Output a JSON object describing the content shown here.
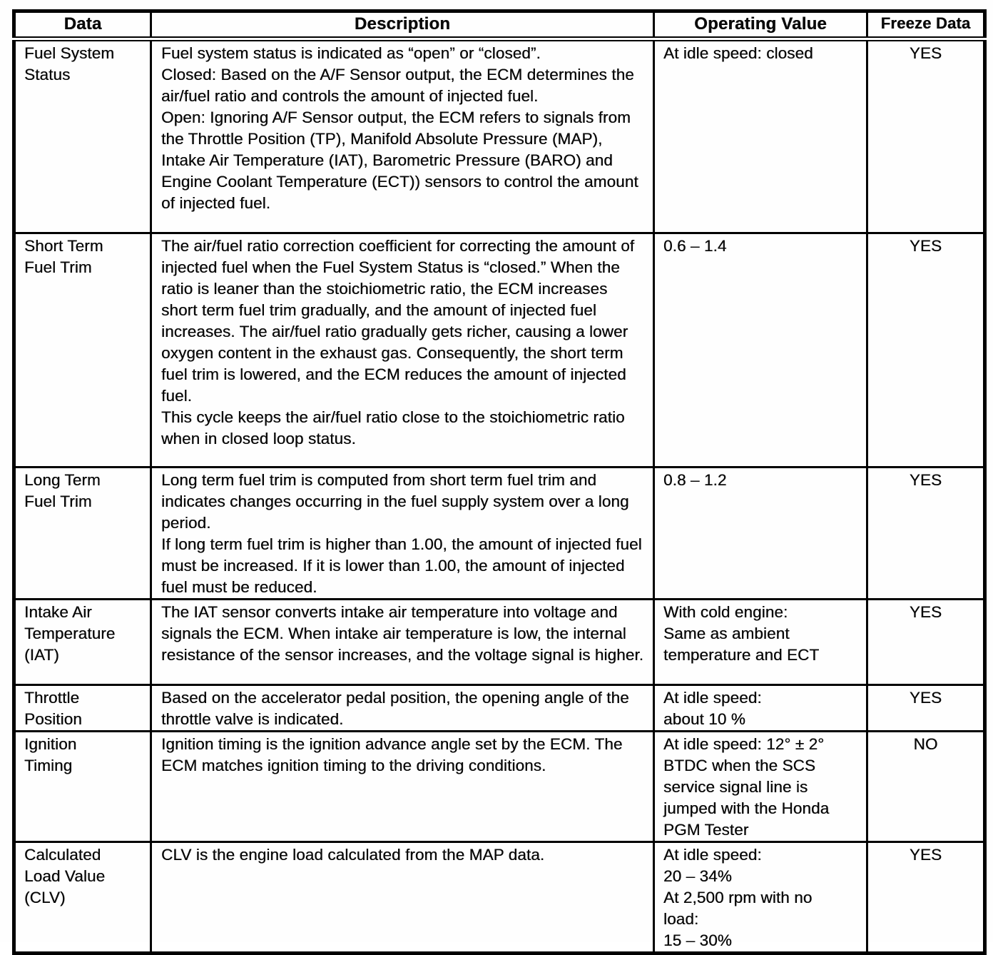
{
  "table": {
    "headers": {
      "data": "Data",
      "description": "Description",
      "operating_value": "Operating Value",
      "freeze_data": "Freeze Data"
    },
    "rows": [
      {
        "data": "Fuel System\nStatus",
        "description": "Fuel system status is indicated as “open” or “closed”.\nClosed: Based on the A/F Sensor output, the ECM determines the air/fuel ratio and controls the amount of injected fuel.\nOpen: Ignoring A/F Sensor output, the ECM refers to signals from the Throttle Position (TP), Manifold Absolute Pressure (MAP), Intake Air Temperature (IAT), Barometric Pressure (BARO) and Engine Coolant Temperature (ECT)) sensors to control the amount of injected fuel.",
        "operating_value": "At idle speed: closed",
        "freeze_data": "YES"
      },
      {
        "data": "Short Term\nFuel Trim",
        "description": "The air/fuel ratio correction coefficient for correcting the amount of injected fuel when the Fuel System Status is “closed.” When the ratio is leaner than the stoichiometric ratio, the ECM increases short term fuel trim gradually, and the amount of injected fuel increases. The air/fuel ratio gradually gets richer, causing a lower oxygen content in the exhaust gas. Consequently, the short term fuel trim is lowered, and the ECM reduces the amount of injected fuel.\nThis cycle keeps the air/fuel ratio close to the stoichiometric ratio when in closed loop status.",
        "operating_value": "0.6 – 1.4",
        "freeze_data": "YES"
      },
      {
        "data": "Long Term\nFuel Trim",
        "description": "Long term fuel trim is computed from short term fuel trim and indicates changes occurring in the fuel supply system over a long period.\nIf long term fuel trim is higher than 1.00, the amount of injected fuel must be increased. If it is lower than 1.00, the amount of injected fuel must be reduced.",
        "operating_value": "0.8 – 1.2",
        "freeze_data": "YES"
      },
      {
        "data": "Intake Air\nTemperature\n(IAT)",
        "description": "The IAT sensor converts intake air temperature into voltage and signals the ECM. When intake air temperature is low, the internal resistance of the sensor increases, and the voltage signal is higher.",
        "operating_value": "With cold engine:\nSame as ambient\ntemperature and ECT",
        "freeze_data": "YES"
      },
      {
        "data": "Throttle\nPosition",
        "description": "Based on the accelerator pedal position, the opening angle of the throttle valve is indicated.",
        "operating_value": "At idle speed:\nabout 10 %",
        "freeze_data": "YES"
      },
      {
        "data": "Ignition\nTiming",
        "description": "Ignition timing is the ignition advance angle set by the ECM. The ECM matches ignition timing to the driving conditions.",
        "operating_value": "At idle speed: 12° ± 2°\nBTDC when the SCS\nservice signal line is\njumped with the Honda\nPGM Tester",
        "freeze_data": "NO"
      },
      {
        "data": "Calculated\nLoad Value\n(CLV)",
        "description": "CLV is the engine load calculated from the MAP data.",
        "operating_value": "At idle speed:\n20 – 34%\nAt 2,500 rpm with no\nload:\n15 – 30%",
        "freeze_data": "YES"
      }
    ]
  }
}
